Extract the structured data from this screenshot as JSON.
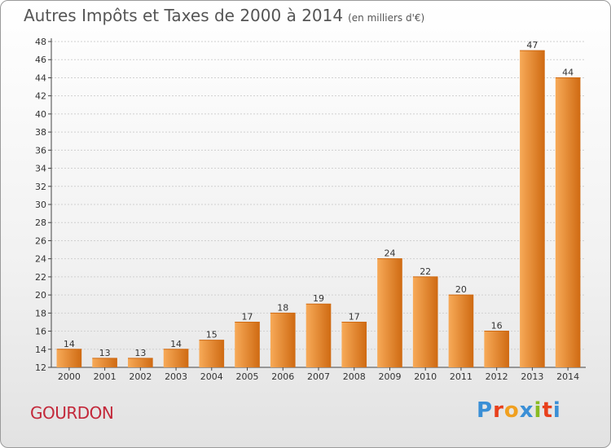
{
  "header": {
    "title": "Autres Impôts et Taxes de 2000 à 2014",
    "unit": "(en milliers d'€)"
  },
  "commune": "GOURDON",
  "logo": {
    "letters": [
      "P",
      "r",
      "o",
      "x",
      "i",
      "t",
      "i"
    ],
    "colors": [
      "#3a8fd6",
      "#e8401c",
      "#f0a020",
      "#3a8fd6",
      "#88bb22",
      "#e8401c",
      "#3a8fd6"
    ]
  },
  "chart_data": {
    "type": "bar",
    "categories": [
      "2000",
      "2001",
      "2002",
      "2003",
      "2004",
      "2005",
      "2006",
      "2007",
      "2008",
      "2009",
      "2010",
      "2011",
      "2012",
      "2013",
      "2014"
    ],
    "values": [
      14,
      13,
      13,
      14,
      15,
      17,
      18,
      19,
      17,
      24,
      22,
      20,
      16,
      47,
      44
    ],
    "ylim": [
      12,
      48
    ],
    "yticks": [
      12,
      14,
      16,
      18,
      20,
      22,
      24,
      26,
      28,
      30,
      32,
      34,
      36,
      38,
      40,
      42,
      44,
      46,
      48
    ],
    "grid": true,
    "bar_color": "#ef8c2f",
    "bar_color_light": "#f7aa58",
    "bar_color_dark": "#cf6a12"
  }
}
